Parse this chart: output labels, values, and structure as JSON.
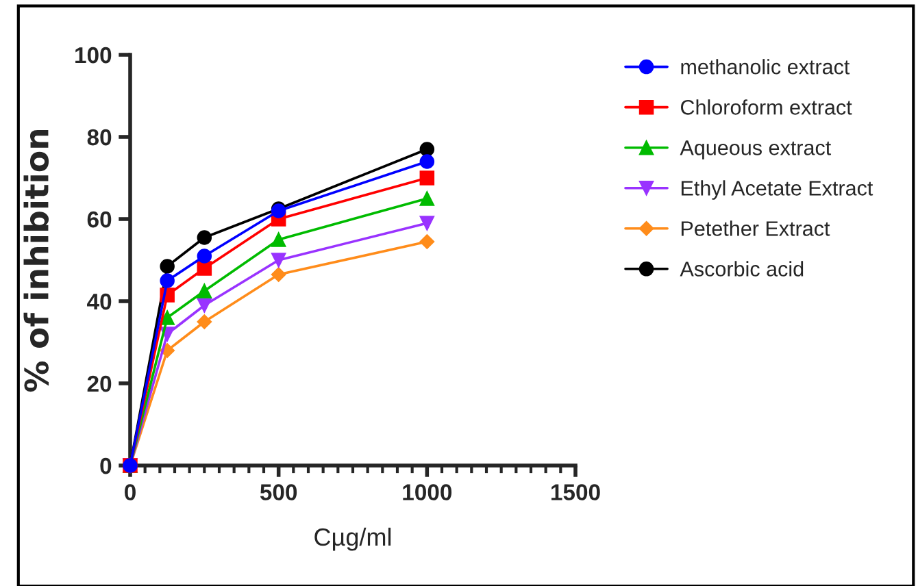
{
  "chart_data": {
    "type": "line",
    "xlabel": "Cµg/ml",
    "ylabel": "% of inhibition",
    "x": [
      0,
      125,
      250,
      500,
      1000
    ],
    "xlim": [
      0,
      1500
    ],
    "xticks": [
      0,
      500,
      1000,
      1500
    ],
    "ylim": [
      0,
      100
    ],
    "yticks": [
      0,
      20,
      40,
      60,
      80,
      100
    ],
    "grid": false,
    "legend": "right",
    "series": [
      {
        "name": "methanolic extract",
        "color": "#0000ff",
        "marker": "circle",
        "values": [
          0,
          45,
          51,
          62,
          74
        ]
      },
      {
        "name": "Chloroform extract",
        "color": "#ff0000",
        "marker": "square",
        "values": [
          0,
          41.5,
          48,
          60,
          70
        ]
      },
      {
        "name": "Aqueous extract",
        "color": "#00bb00",
        "marker": "triangle",
        "values": [
          0,
          36,
          42.5,
          55,
          65
        ]
      },
      {
        "name": "Ethyl Acetate Extract",
        "color": "#9933ff",
        "marker": "triangle_down",
        "values": [
          0,
          32,
          39,
          50,
          59
        ]
      },
      {
        "name": "Petether Extract",
        "color": "#ff8c1a",
        "marker": "diamond",
        "values": [
          0,
          28,
          35,
          46.5,
          54.5
        ]
      },
      {
        "name": "Ascorbic acid",
        "color": "#000000",
        "marker": "circle",
        "values": [
          0,
          48.5,
          55.5,
          62.5,
          77
        ]
      }
    ]
  }
}
